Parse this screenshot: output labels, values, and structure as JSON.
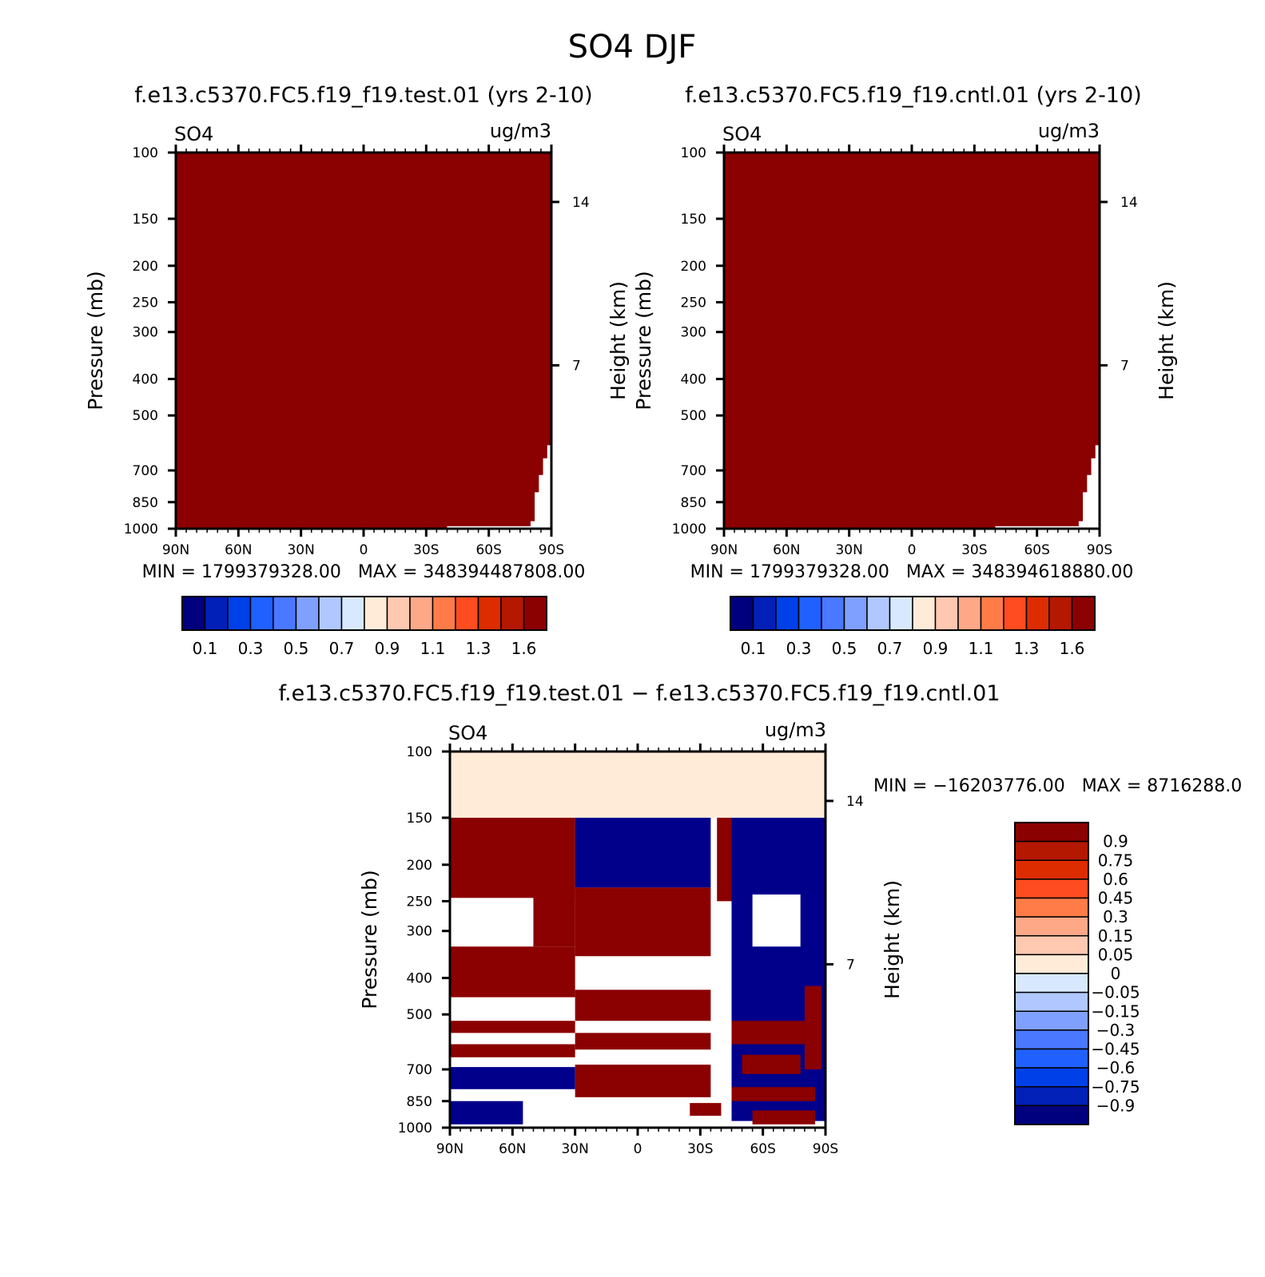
{
  "main_title": "SO4 DJF",
  "chart_data": [
    {
      "type": "heatmap",
      "title": "f.e13.c5370.FC5.f19_f19.test.01 (yrs 2-10)",
      "variable": "SO4",
      "units": "ug/m3",
      "ylabel": "Pressure (mb)",
      "ylabel_right": "Height (km)",
      "x_tick_labels": [
        "90N",
        "60N",
        "30N",
        "0",
        "30S",
        "60S",
        "90S"
      ],
      "y_ticks": [
        100,
        150,
        200,
        250,
        300,
        400,
        500,
        700,
        850,
        1000
      ],
      "y_right_ticks": [
        14,
        7
      ],
      "ylim": [
        1000,
        100
      ],
      "min_max": "MIN = 1799379328.00   MAX = 348394487808.00",
      "fill_color": "#8b0000",
      "colorbar_labels": [
        "0.1",
        "0.3",
        "0.5",
        "0.7",
        "0.9",
        "1.1",
        "1.3",
        "1.6"
      ],
      "colorbar_colors": [
        "#00007e",
        "#0020b8",
        "#0040e8",
        "#2060ff",
        "#4a78ff",
        "#80a0ff",
        "#b0c8ff",
        "#d8e8ff",
        "#ffebd8",
        "#ffc8b0",
        "#ffa888",
        "#ff7c48",
        "#ff4c20",
        "#dd2c00",
        "#b41800",
        "#8b0000"
      ]
    },
    {
      "type": "heatmap",
      "title": "f.e13.c5370.FC5.f19_f19.cntl.01 (yrs 2-10)",
      "variable": "SO4",
      "units": "ug/m3",
      "ylabel": "Pressure (mb)",
      "ylabel_right": "Height (km)",
      "x_tick_labels": [
        "90N",
        "60N",
        "30N",
        "0",
        "30S",
        "60S",
        "90S"
      ],
      "y_ticks": [
        100,
        150,
        200,
        250,
        300,
        400,
        500,
        700,
        850,
        1000
      ],
      "y_right_ticks": [
        14,
        7
      ],
      "ylim": [
        1000,
        100
      ],
      "min_max": "MIN = 1799379328.00   MAX = 348394618880.00",
      "fill_color": "#8b0000",
      "colorbar_labels": [
        "0.1",
        "0.3",
        "0.5",
        "0.7",
        "0.9",
        "1.1",
        "1.3",
        "1.6"
      ],
      "colorbar_colors": [
        "#00007e",
        "#0020b8",
        "#0040e8",
        "#2060ff",
        "#4a78ff",
        "#80a0ff",
        "#b0c8ff",
        "#d8e8ff",
        "#ffebd8",
        "#ffc8b0",
        "#ffa888",
        "#ff7c48",
        "#ff4c20",
        "#dd2c00",
        "#b41800",
        "#8b0000"
      ]
    },
    {
      "type": "heatmap",
      "title": "f.e13.c5370.FC5.f19_f19.test.01 − f.e13.c5370.FC5.f19_f19.cntl.01",
      "variable": "SO4",
      "units": "ug/m3",
      "ylabel": "Pressure (mb)",
      "ylabel_right": "Height (km)",
      "x_tick_labels": [
        "90N",
        "60N",
        "30N",
        "0",
        "30S",
        "60S",
        "90S"
      ],
      "y_ticks": [
        100,
        150,
        200,
        250,
        300,
        400,
        500,
        700,
        850,
        1000
      ],
      "y_right_ticks": [
        14,
        7
      ],
      "ylim": [
        1000,
        100
      ],
      "min_max": "MIN = −16203776.00   MAX = 8716288.0",
      "colorbar_labels": [
        "0.9",
        "0.75",
        "0.6",
        "0.45",
        "0.3",
        "0.15",
        "0.05",
        "0",
        "−0.05",
        "−0.15",
        "−0.3",
        "−0.45",
        "−0.6",
        "−0.75",
        "−0.9"
      ],
      "colorbar_colors": [
        "#8b0000",
        "#b41800",
        "#dd2c00",
        "#ff4c20",
        "#ff7c48",
        "#ffa888",
        "#ffc8b0",
        "#ffebd8",
        "#d8e8ff",
        "#b0c8ff",
        "#80a0ff",
        "#4a78ff",
        "#2060ff",
        "#0040e8",
        "#0020b8",
        "#00007e"
      ],
      "regions": {
        "top_band": {
          "p_range": [
            100,
            150
          ],
          "color": "#ffebd8"
        },
        "positive_color": "#8b0000",
        "negative_color": "#00008b"
      }
    }
  ]
}
